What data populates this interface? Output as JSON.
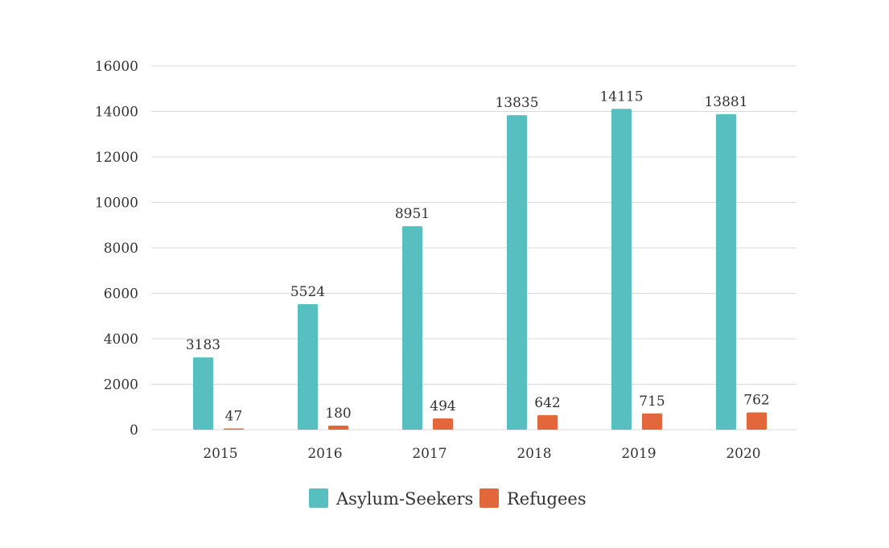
{
  "chart_data": {
    "type": "bar",
    "title": "",
    "xlabel": "",
    "ylabel": "",
    "categories": [
      "2015",
      "2016",
      "2017",
      "2018",
      "2019",
      "2020"
    ],
    "series": [
      {
        "name": "Asylum-Seekers",
        "color": "#58bfc1",
        "values": [
          3183,
          5524,
          8951,
          13835,
          14115,
          13881
        ]
      },
      {
        "name": "Refugees",
        "color": "#e2683c",
        "values": [
          47,
          180,
          494,
          642,
          715,
          762
        ]
      }
    ],
    "ylim": [
      0,
      16000
    ],
    "yticks": [
      "0",
      "2000",
      "4000",
      "6000",
      "8000",
      "10000",
      "12000",
      "14000",
      "16000"
    ],
    "grid": true,
    "legend_position": "bottom"
  }
}
